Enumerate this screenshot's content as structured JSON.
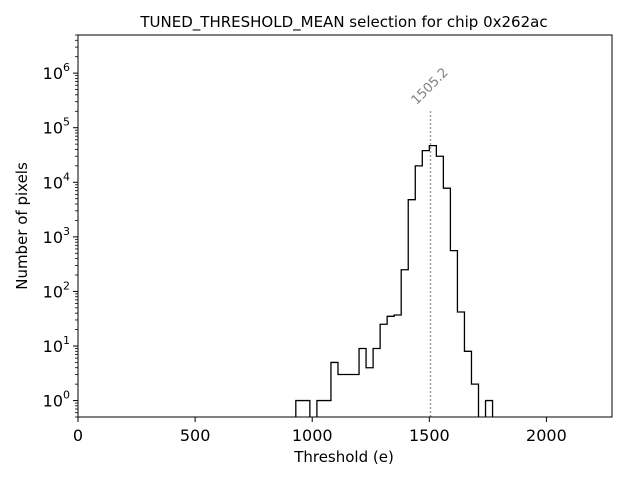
{
  "chart_data": {
    "type": "histogram-step",
    "title": "TUNED_THRESHOLD_MEAN selection for chip 0x262ac",
    "xlabel": "Threshold (e)",
    "ylabel": "Number of pixels",
    "xlim": [
      0,
      2280
    ],
    "ylim": [
      0.5,
      5000000
    ],
    "yscale": "log",
    "xticks": [
      0,
      500,
      1000,
      1500,
      2000
    ],
    "xtick_labels": [
      "0",
      "500",
      "1000",
      "1500",
      "2000"
    ],
    "yticks": [
      1,
      10,
      100,
      1000,
      10000,
      100000,
      1000000
    ],
    "ytick_labels": [
      {
        "base": "10",
        "exp": "0"
      },
      {
        "base": "10",
        "exp": "1"
      },
      {
        "base": "10",
        "exp": "2"
      },
      {
        "base": "10",
        "exp": "3"
      },
      {
        "base": "10",
        "exp": "4"
      },
      {
        "base": "10",
        "exp": "5"
      },
      {
        "base": "10",
        "exp": "6"
      }
    ],
    "bin_width": 30,
    "bins": [
      {
        "x0": 930,
        "count": 1
      },
      {
        "x0": 960,
        "count": 1
      },
      {
        "x0": 990,
        "count": 0
      },
      {
        "x0": 1020,
        "count": 1
      },
      {
        "x0": 1050,
        "count": 1
      },
      {
        "x0": 1080,
        "count": 5
      },
      {
        "x0": 1110,
        "count": 3
      },
      {
        "x0": 1140,
        "count": 3
      },
      {
        "x0": 1170,
        "count": 3
      },
      {
        "x0": 1200,
        "count": 9
      },
      {
        "x0": 1230,
        "count": 4
      },
      {
        "x0": 1260,
        "count": 9
      },
      {
        "x0": 1290,
        "count": 25
      },
      {
        "x0": 1320,
        "count": 35
      },
      {
        "x0": 1350,
        "count": 37
      },
      {
        "x0": 1380,
        "count": 250
      },
      {
        "x0": 1410,
        "count": 4800
      },
      {
        "x0": 1440,
        "count": 20000
      },
      {
        "x0": 1470,
        "count": 38000
      },
      {
        "x0": 1500,
        "count": 47000
      },
      {
        "x0": 1530,
        "count": 30000
      },
      {
        "x0": 1560,
        "count": 7800
      },
      {
        "x0": 1590,
        "count": 560
      },
      {
        "x0": 1620,
        "count": 42
      },
      {
        "x0": 1650,
        "count": 8
      },
      {
        "x0": 1680,
        "count": 2
      },
      {
        "x0": 1710,
        "count": 0
      },
      {
        "x0": 1740,
        "count": 1
      }
    ],
    "annotation": {
      "label": "1505.2",
      "x": 1505.2,
      "y_top": 200000,
      "color": "#808080"
    },
    "line_color": "#000000",
    "grid": false
  }
}
